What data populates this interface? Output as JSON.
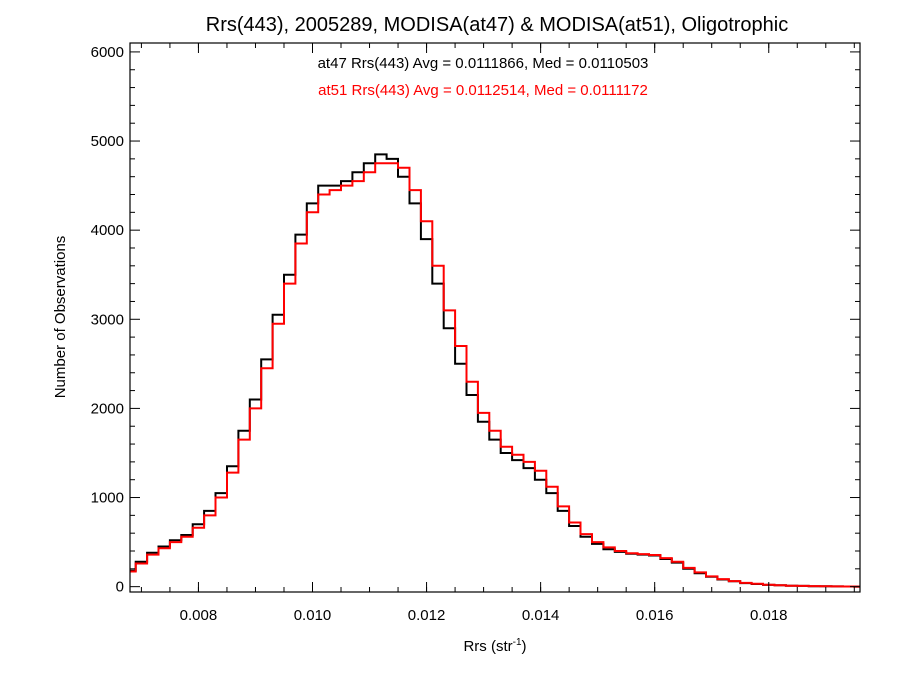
{
  "chart_data": {
    "type": "line",
    "title": "Rrs(443), 2005289, MODISA(at47) & MODISA(at51), Oligotrophic",
    "xlabel_base": "Rrs (str",
    "xlabel_sup": "-1",
    "xlabel_close": ")",
    "ylabel": "Number of Observations",
    "xlim": [
      0.0068,
      0.0196
    ],
    "ylim": [
      -60,
      6100
    ],
    "x_ticks": [
      "0.008",
      "0.010",
      "0.012",
      "0.014",
      "0.016",
      "0.018"
    ],
    "y_ticks": [
      "0",
      "1000",
      "2000",
      "3000",
      "4000",
      "5000",
      "6000"
    ],
    "grid": false,
    "step": true,
    "annotations": [
      {
        "text": "at47 Rrs(443) Avg = 0.0111866, Med = 0.0110503",
        "color": "#000000"
      },
      {
        "text": "at51 Rrs(443) Avg = 0.0112514, Med = 0.0111172",
        "color": "#ff0000"
      }
    ],
    "series": [
      {
        "color": "#000000",
        "x": [
          0.0068,
          0.007,
          0.0072,
          0.0074,
          0.0076,
          0.0078,
          0.008,
          0.0082,
          0.0084,
          0.0086,
          0.0088,
          0.009,
          0.0092,
          0.0094,
          0.0096,
          0.0098,
          0.01,
          0.0102,
          0.0104,
          0.0106,
          0.0108,
          0.011,
          0.0112,
          0.0114,
          0.0116,
          0.0118,
          0.012,
          0.0122,
          0.0124,
          0.0126,
          0.0128,
          0.013,
          0.0132,
          0.0134,
          0.0136,
          0.0138,
          0.014,
          0.0142,
          0.0144,
          0.0146,
          0.0148,
          0.015,
          0.0152,
          0.0154,
          0.0156,
          0.0158,
          0.016,
          0.0162,
          0.0164,
          0.0166,
          0.0168,
          0.017,
          0.0172,
          0.0174,
          0.0176,
          0.0178,
          0.018,
          0.0182,
          0.0184,
          0.0186,
          0.0188,
          0.019,
          0.0192,
          0.0194,
          0.0196
        ],
        "y": [
          180,
          280,
          380,
          450,
          520,
          580,
          700,
          850,
          1050,
          1350,
          1750,
          2100,
          2550,
          3050,
          3500,
          3950,
          4300,
          4500,
          4500,
          4550,
          4650,
          4750,
          4850,
          4800,
          4600,
          4300,
          3900,
          3400,
          2900,
          2500,
          2150,
          1850,
          1650,
          1500,
          1420,
          1330,
          1200,
          1050,
          850,
          680,
          560,
          480,
          420,
          390,
          370,
          360,
          350,
          310,
          270,
          200,
          150,
          110,
          80,
          60,
          40,
          30,
          20,
          15,
          10,
          8,
          5,
          4,
          3,
          2,
          1
        ]
      },
      {
        "color": "#ff0000",
        "x": [
          0.0068,
          0.007,
          0.0072,
          0.0074,
          0.0076,
          0.0078,
          0.008,
          0.0082,
          0.0084,
          0.0086,
          0.0088,
          0.009,
          0.0092,
          0.0094,
          0.0096,
          0.0098,
          0.01,
          0.0102,
          0.0104,
          0.0106,
          0.0108,
          0.011,
          0.0112,
          0.0114,
          0.0116,
          0.0118,
          0.012,
          0.0122,
          0.0124,
          0.0126,
          0.0128,
          0.013,
          0.0132,
          0.0134,
          0.0136,
          0.0138,
          0.014,
          0.0142,
          0.0144,
          0.0146,
          0.0148,
          0.015,
          0.0152,
          0.0154,
          0.0156,
          0.0158,
          0.016,
          0.0162,
          0.0164,
          0.0166,
          0.0168,
          0.017,
          0.0172,
          0.0174,
          0.0176,
          0.0178,
          0.018,
          0.0182,
          0.0184,
          0.0186,
          0.0188,
          0.019,
          0.0192,
          0.0194,
          0.0196
        ],
        "y": [
          170,
          260,
          360,
          430,
          500,
          560,
          660,
          800,
          1000,
          1280,
          1650,
          2000,
          2450,
          2950,
          3400,
          3850,
          4200,
          4400,
          4450,
          4500,
          4550,
          4650,
          4750,
          4750,
          4700,
          4450,
          4100,
          3600,
          3100,
          2700,
          2300,
          1950,
          1750,
          1570,
          1480,
          1400,
          1300,
          1120,
          900,
          720,
          590,
          500,
          440,
          400,
          375,
          365,
          355,
          320,
          280,
          210,
          160,
          115,
          85,
          62,
          42,
          32,
          22,
          16,
          11,
          9,
          6,
          4,
          3,
          2,
          1
        ]
      }
    ]
  }
}
